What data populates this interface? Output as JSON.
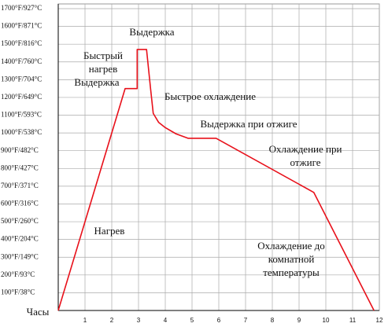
{
  "chart_data": {
    "type": "line",
    "x_label": "Часы",
    "series": [
      {
        "name": null,
        "color": "#e8101a",
        "x": [
          0,
          2.5,
          2.95,
          2.95,
          3.3,
          3.45,
          3.55,
          3.75,
          4.0,
          4.4,
          4.85,
          5.9,
          9.55,
          11.8
        ],
        "values": [
          0,
          1250,
          1250,
          1470,
          1470,
          1250,
          1110,
          1060,
          1030,
          995,
          970,
          970,
          665,
          0
        ]
      }
    ],
    "xlim": [
      0,
      12
    ],
    "xticks": [
      1,
      2,
      3,
      4,
      5,
      6,
      7,
      8,
      9,
      10,
      11,
      12
    ],
    "ylim": [
      0,
      1700
    ],
    "yticks": [
      {
        "value": 100,
        "label": "100°F/38°C"
      },
      {
        "value": 200,
        "label": "200°F/93°C"
      },
      {
        "value": 300,
        "label": "300°F/149°C"
      },
      {
        "value": 400,
        "label": "400°F/204°C"
      },
      {
        "value": 500,
        "label": "500°F/260°C"
      },
      {
        "value": 600,
        "label": "600°F/316°C"
      },
      {
        "value": 700,
        "label": "700°F/371°C"
      },
      {
        "value": 800,
        "label": "800°F/427°C"
      },
      {
        "value": 900,
        "label": "900°F/482°C"
      },
      {
        "value": 1000,
        "label": "1000°F/538°C"
      },
      {
        "value": 1100,
        "label": "1100°F/593°C"
      },
      {
        "value": 1200,
        "label": "1200°F/649°C"
      },
      {
        "value": 1300,
        "label": "1300°F/704°C"
      },
      {
        "value": 1400,
        "label": "1400°F/760°C"
      },
      {
        "value": 1500,
        "label": "1500°F/816°C"
      },
      {
        "value": 1600,
        "label": "1600°F/871°C"
      },
      {
        "value": 1700,
        "label": "1700°F/927°C"
      }
    ],
    "grid": true,
    "annotations": [
      {
        "lines": [
          "Выдержка"
        ]
      },
      {
        "lines": [
          "Быстрый",
          "нагрев"
        ]
      },
      {
        "lines": [
          "Выдержка"
        ]
      },
      {
        "lines": [
          "Быстрое охлаждение"
        ]
      },
      {
        "lines": [
          "Выдержка при отжиге"
        ]
      },
      {
        "lines": [
          "Охлаждение при",
          "отжиге"
        ]
      },
      {
        "lines": [
          "Нагрев"
        ]
      },
      {
        "lines": [
          "Охлаждение до",
          "комнатной",
          "температуры"
        ]
      }
    ]
  }
}
